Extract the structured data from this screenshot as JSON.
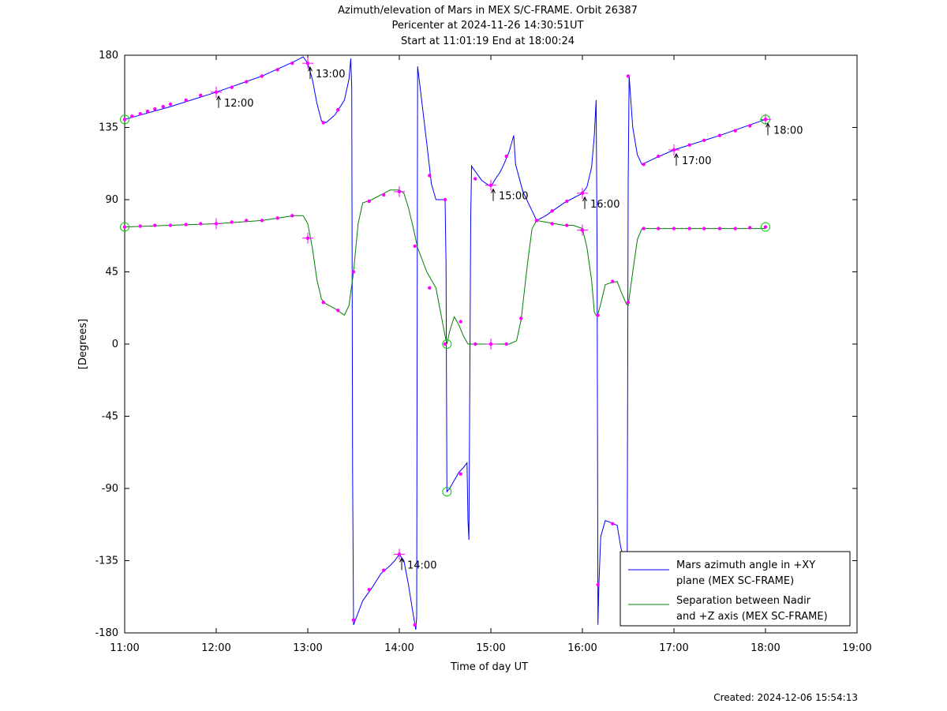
{
  "chart_data": {
    "type": "line",
    "title_lines": [
      "Azimuth/elevation of Mars in MEX S/C-FRAME.  Orbit 26387",
      "Pericenter at 2024-11-26 14:30:51UT",
      "Start at 11:01:19 End at 18:00:24"
    ],
    "xlabel": "Time of day UT",
    "ylabel": "[Degrees]",
    "xlim": [
      11,
      19
    ],
    "ylim": [
      -180,
      180
    ],
    "x_ticks": [
      "11:00",
      "12:00",
      "13:00",
      "14:00",
      "15:00",
      "16:00",
      "17:00",
      "18:00",
      "19:00"
    ],
    "y_ticks": [
      "180",
      "135",
      "90",
      "45",
      "0",
      "-45",
      "-90",
      "-135",
      "-180"
    ],
    "grid": false,
    "legend_position": "bottom-right",
    "series": [
      {
        "name": "Mars azimuth angle in +XY plane (MEX SC-FRAME)",
        "legend_lines": [
          "Mars azimuth angle in +XY",
          "plane (MEX SC-FRAME)"
        ],
        "color": "#0000ff",
        "segments": [
          [
            [
              11.0,
              140
            ],
            [
              11.5,
              148
            ],
            [
              12.0,
              157
            ],
            [
              12.5,
              167
            ],
            [
              12.85,
              176
            ],
            [
              12.95,
              179
            ],
            [
              13.0,
              175
            ],
            [
              13.05,
              165
            ],
            [
              13.1,
              150
            ],
            [
              13.15,
              139
            ],
            [
              13.2,
              138
            ],
            [
              13.3,
              143
            ],
            [
              13.4,
              152
            ],
            [
              13.45,
              165
            ],
            [
              13.47,
              178
            ],
            [
              13.48,
              160
            ],
            [
              13.49,
              -80
            ],
            [
              13.5,
              -175
            ],
            [
              13.6,
              -160
            ],
            [
              13.7,
              -152
            ],
            [
              13.8,
              -143
            ],
            [
              13.9,
              -138
            ],
            [
              13.95,
              -135
            ],
            [
              14.0,
              -131
            ],
            [
              14.05,
              -135
            ],
            [
              14.1,
              -150
            ],
            [
              14.15,
              -168
            ],
            [
              14.18,
              -178
            ],
            [
              14.19,
              -170
            ],
            [
              14.2,
              173
            ],
            [
              14.3,
              125
            ],
            [
              14.35,
              100
            ],
            [
              14.4,
              90
            ],
            [
              14.45,
              90
            ],
            [
              14.5,
              90
            ],
            [
              14.51,
              50
            ],
            [
              14.52,
              -92
            ],
            [
              14.55,
              -90
            ],
            [
              14.6,
              -85
            ],
            [
              14.65,
              -80
            ],
            [
              14.7,
              -77
            ],
            [
              14.74,
              -74
            ],
            [
              14.75,
              -110
            ],
            [
              14.76,
              -122
            ],
            [
              14.77,
              -25
            ],
            [
              14.78,
              80
            ],
            [
              14.79,
              111
            ],
            [
              14.8,
              110
            ],
            [
              14.9,
              102
            ],
            [
              15.0,
              98
            ],
            [
              15.05,
              103
            ],
            [
              15.1,
              107
            ],
            [
              15.15,
              113
            ],
            [
              15.2,
              120
            ],
            [
              15.25,
              130
            ],
            [
              15.27,
              112
            ],
            [
              15.35,
              95
            ],
            [
              15.45,
              83
            ],
            [
              15.5,
              77
            ],
            [
              15.6,
              80
            ],
            [
              15.7,
              84
            ],
            [
              15.8,
              88
            ],
            [
              15.9,
              91
            ],
            [
              16.0,
              94
            ],
            [
              16.05,
              98
            ],
            [
              16.1,
              110
            ],
            [
              16.13,
              130
            ],
            [
              16.15,
              152
            ],
            [
              16.16,
              60
            ],
            [
              16.17,
              -175
            ],
            [
              16.18,
              -150
            ],
            [
              16.2,
              -120
            ],
            [
              16.25,
              -110
            ],
            [
              16.3,
              -111
            ],
            [
              16.38,
              -113
            ],
            [
              16.42,
              -127
            ],
            [
              16.45,
              -133
            ]
          ],
          [
            [
              16.49,
              -130
            ],
            [
              16.5,
              100
            ],
            [
              16.51,
              167
            ],
            [
              16.55,
              135
            ],
            [
              16.6,
              118
            ],
            [
              16.65,
              112
            ],
            [
              16.8,
              116
            ],
            [
              17.0,
              121
            ],
            [
              17.5,
              130
            ],
            [
              18.0,
              140
            ]
          ]
        ]
      },
      {
        "name": "Separation between Nadir and +Z axis (MEX SC-FRAME)",
        "legend_lines": [
          "Separation between Nadir",
          "and +Z axis (MEX SC-FRAME)"
        ],
        "color": "#008000",
        "segments": [
          [
            [
              11.0,
              73
            ],
            [
              11.5,
              74
            ],
            [
              12.0,
              75
            ],
            [
              12.5,
              77
            ],
            [
              12.85,
              80
            ],
            [
              12.95,
              80
            ],
            [
              13.0,
              75
            ],
            [
              13.05,
              60
            ],
            [
              13.1,
              40
            ],
            [
              13.15,
              28
            ],
            [
              13.2,
              25
            ],
            [
              13.3,
              22
            ],
            [
              13.4,
              18
            ],
            [
              13.45,
              24
            ],
            [
              13.5,
              45
            ],
            [
              13.55,
              75
            ],
            [
              13.6,
              88
            ],
            [
              13.7,
              90
            ],
            [
              13.8,
              93
            ],
            [
              13.9,
              96
            ],
            [
              14.0,
              96
            ],
            [
              14.05,
              94
            ],
            [
              14.1,
              85
            ],
            [
              14.15,
              73
            ],
            [
              14.2,
              60
            ],
            [
              14.3,
              45
            ],
            [
              14.4,
              35
            ],
            [
              14.5,
              5
            ],
            [
              14.52,
              0
            ],
            [
              14.55,
              8
            ],
            [
              14.6,
              17
            ],
            [
              14.65,
              12
            ],
            [
              14.7,
              5
            ],
            [
              14.75,
              0
            ],
            [
              14.8,
              0
            ],
            [
              15.0,
              0
            ],
            [
              15.2,
              0
            ],
            [
              15.28,
              2
            ],
            [
              15.33,
              15
            ],
            [
              15.4,
              50
            ],
            [
              15.45,
              72
            ],
            [
              15.5,
              77
            ],
            [
              15.6,
              76
            ],
            [
              15.7,
              75
            ],
            [
              15.8,
              74
            ],
            [
              15.9,
              74
            ],
            [
              16.0,
              72
            ],
            [
              16.05,
              60
            ],
            [
              16.1,
              40
            ],
            [
              16.13,
              20
            ],
            [
              16.16,
              17
            ],
            [
              16.2,
              25
            ],
            [
              16.25,
              37
            ],
            [
              16.3,
              38
            ],
            [
              16.38,
              39
            ],
            [
              16.42,
              33
            ],
            [
              16.48,
              25
            ],
            [
              16.5,
              24
            ],
            [
              16.55,
              45
            ],
            [
              16.6,
              65
            ],
            [
              16.65,
              72
            ],
            [
              17.0,
              72
            ],
            [
              17.5,
              72
            ],
            [
              18.0,
              72
            ]
          ]
        ]
      }
    ],
    "markers": {
      "color": "#ff00ff",
      "azimuth_points": [
        [
          11.0,
          140
        ],
        [
          11.08,
          142
        ],
        [
          11.17,
          143.5
        ],
        [
          11.25,
          145
        ],
        [
          11.33,
          146.5
        ],
        [
          11.42,
          148
        ],
        [
          11.5,
          149.5
        ],
        [
          11.67,
          152
        ],
        [
          11.83,
          155
        ],
        [
          12.0,
          157
        ],
        [
          12.17,
          160
        ],
        [
          12.33,
          163.5
        ],
        [
          12.5,
          167
        ],
        [
          12.67,
          171
        ],
        [
          12.83,
          175
        ],
        [
          13.0,
          175
        ],
        [
          13.17,
          138
        ],
        [
          13.33,
          146
        ],
        [
          13.5,
          -172
        ],
        [
          13.67,
          -153
        ],
        [
          13.83,
          -141
        ],
        [
          14.0,
          -131
        ],
        [
          14.17,
          -175
        ],
        [
          14.33,
          105
        ],
        [
          14.5,
          90
        ],
        [
          14.67,
          -81
        ],
        [
          14.83,
          103
        ],
        [
          15.0,
          99
        ],
        [
          15.17,
          117
        ],
        [
          15.5,
          77
        ],
        [
          15.67,
          83
        ],
        [
          15.83,
          89
        ],
        [
          16.0,
          94
        ],
        [
          16.17,
          -150
        ],
        [
          16.33,
          -112
        ],
        [
          16.5,
          167
        ],
        [
          16.67,
          112
        ],
        [
          16.83,
          117
        ],
        [
          17.0,
          121
        ],
        [
          17.17,
          124
        ],
        [
          17.33,
          127
        ],
        [
          17.5,
          130
        ],
        [
          17.67,
          133
        ],
        [
          17.83,
          136
        ],
        [
          18.0,
          140
        ]
      ],
      "separation_points": [
        [
          11.0,
          73
        ],
        [
          11.17,
          73.5
        ],
        [
          11.33,
          74
        ],
        [
          11.5,
          74
        ],
        [
          11.67,
          74.5
        ],
        [
          11.83,
          75
        ],
        [
          12.0,
          75
        ],
        [
          12.17,
          76
        ],
        [
          12.33,
          77
        ],
        [
          12.5,
          77
        ],
        [
          12.67,
          78.5
        ],
        [
          12.83,
          80
        ],
        [
          13.0,
          66
        ],
        [
          13.17,
          26
        ],
        [
          13.33,
          21
        ],
        [
          13.5,
          45
        ],
        [
          13.67,
          89
        ],
        [
          13.83,
          93
        ],
        [
          14.0,
          95
        ],
        [
          14.17,
          61
        ],
        [
          14.33,
          35
        ],
        [
          14.5,
          0
        ],
        [
          14.67,
          14
        ],
        [
          14.83,
          0
        ],
        [
          15.0,
          0
        ],
        [
          15.17,
          0
        ],
        [
          15.33,
          16
        ],
        [
          15.5,
          77
        ],
        [
          15.67,
          75
        ],
        [
          15.83,
          74
        ],
        [
          16.0,
          71
        ],
        [
          16.17,
          18
        ],
        [
          16.33,
          39
        ],
        [
          16.5,
          26
        ],
        [
          16.67,
          72
        ],
        [
          16.83,
          72
        ],
        [
          17.0,
          72
        ],
        [
          17.17,
          72
        ],
        [
          17.33,
          72
        ],
        [
          17.5,
          72
        ],
        [
          17.67,
          72
        ],
        [
          17.83,
          72.5
        ],
        [
          18.0,
          73
        ]
      ],
      "hour_crosses": [
        [
          12.0,
          157
        ],
        [
          13.0,
          175
        ],
        [
          14.0,
          -131
        ],
        [
          15.0,
          99
        ],
        [
          16.0,
          94
        ],
        [
          17.0,
          121
        ],
        [
          18.0,
          140
        ],
        [
          12.0,
          75
        ],
        [
          13.0,
          66
        ],
        [
          14.0,
          95
        ],
        [
          15.0,
          0
        ],
        [
          16.0,
          71
        ]
      ],
      "circle_points": [
        [
          11.0,
          140
        ],
        [
          11.0,
          73
        ],
        [
          18.0,
          140
        ],
        [
          18.0,
          73
        ],
        [
          14.52,
          0
        ],
        [
          14.52,
          -92
        ]
      ]
    },
    "annotations": [
      {
        "text": "12:00",
        "x": 12.0,
        "y": 157
      },
      {
        "text": "13:00",
        "x": 13.0,
        "y": 175
      },
      {
        "text": "14:00",
        "x": 14.0,
        "y": -131
      },
      {
        "text": "15:00",
        "x": 15.0,
        "y": 99
      },
      {
        "text": "16:00",
        "x": 16.0,
        "y": 94
      },
      {
        "text": "17:00",
        "x": 17.0,
        "y": 121
      },
      {
        "text": "18:00",
        "x": 18.0,
        "y": 140
      }
    ],
    "created": "Created: 2024-12-06 15:54:13"
  }
}
